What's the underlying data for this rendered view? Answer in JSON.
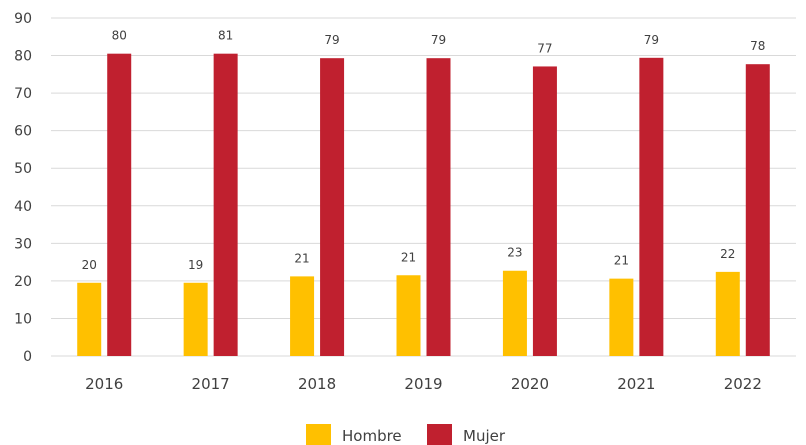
{
  "chart_data": {
    "type": "bar",
    "categories": [
      "2016",
      "2017",
      "2018",
      "2019",
      "2020",
      "2021",
      "2022"
    ],
    "series": [
      {
        "name": "Hombre",
        "color": "#FFC000",
        "values": [
          19.5,
          19.5,
          21.2,
          21.5,
          22.7,
          20.6,
          22.4
        ],
        "labels": [
          "20",
          "19",
          "21",
          "21",
          "23",
          "21",
          "22"
        ]
      },
      {
        "name": "Mujer",
        "color": "#C0202F",
        "values": [
          80.5,
          80.5,
          79.3,
          79.3,
          77.1,
          79.4,
          77.7
        ],
        "labels": [
          "80",
          "81",
          "79",
          "79",
          "77",
          "79",
          "78"
        ]
      }
    ],
    "ylim": [
      0,
      90
    ],
    "yticks": [
      "0",
      "10",
      "20",
      "30",
      "40",
      "50",
      "60",
      "70",
      "80",
      "90"
    ],
    "grid": true,
    "legend_position": "bottom-center",
    "gridline_color": "#D9D9D9"
  }
}
